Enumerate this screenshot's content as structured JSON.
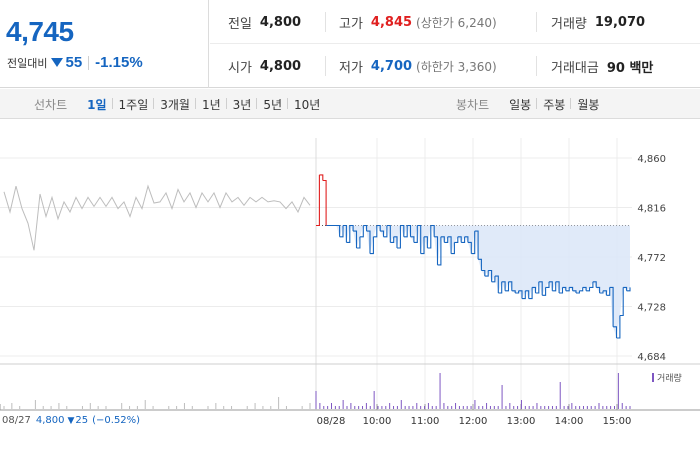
{
  "quote": {
    "price": "4,745",
    "change_label": "전일대비",
    "change_value": "55",
    "change_rate": "-1.15%",
    "direction": "down",
    "colors": {
      "down": "#1565c0",
      "up": "#e02020"
    }
  },
  "stats": {
    "prev_close_label": "전일",
    "prev_close": "4,800",
    "high_label": "고가",
    "high": "4,845",
    "upper_limit": "(상한가 6,240)",
    "volume_label": "거래량",
    "volume": "19,070",
    "open_label": "시가",
    "open": "4,800",
    "low_label": "저가",
    "low": "4,700",
    "lower_limit": "(하한가 3,360)",
    "amount_label": "거래대금",
    "amount": "90 백만"
  },
  "tabs": {
    "line_label": "선차트",
    "line_items": [
      "1일",
      "1주일",
      "3개월",
      "1년",
      "3년",
      "5년",
      "10년"
    ],
    "line_active": "1일",
    "candle_label": "봉차트",
    "candle_items": [
      "일봉",
      "주봉",
      "월봉"
    ]
  },
  "chart_data": {
    "type": "line",
    "title": "",
    "y_ticks": [
      "4,860",
      "4,816",
      "4,772",
      "4,728",
      "4,684"
    ],
    "ylim": [
      4684,
      4860
    ],
    "x_ticks": [
      "08/27",
      "08/28",
      "10:00",
      "11:00",
      "12:00",
      "13:00",
      "14:00",
      "15:00"
    ],
    "previous_close": 4800,
    "legend": "거래량",
    "prev_day_summary": {
      "date": "08/27",
      "price": "4,800",
      "change": "25",
      "rate": "(−0.52%)"
    },
    "series": [
      {
        "session": "08/27",
        "color": "#bdbdbd",
        "values": [
          4830,
          4812,
          4835,
          4815,
          4802,
          4778,
          4828,
          4808,
          4825,
          4806,
          4821,
          4812,
          4825,
          4815,
          4825,
          4817,
          4825,
          4817,
          4825,
          4815,
          4821,
          4808,
          4825,
          4815,
          4835,
          4820,
          4821,
          4829,
          4815,
          4832,
          4821,
          4829,
          4816,
          4829,
          4821,
          4829,
          4816,
          4829,
          4821,
          4825,
          4818,
          4825,
          4821,
          4825,
          4821,
          4822,
          4821,
          4815,
          4821,
          4812,
          4825,
          4818
        ]
      },
      {
        "session": "08/28",
        "color": "#1565c0",
        "upColor": "#e02020",
        "values": [
          4800,
          4845,
          4840,
          4800,
          4800,
          4800,
          4800,
          4790,
          4800,
          4785,
          4800,
          4795,
          4780,
          4790,
          4800,
          4795,
          4775,
          4790,
          4800,
          4795,
          4790,
          4800,
          4785,
          4790,
          4780,
          4800,
          4790,
          4800,
          4790,
          4785,
          4800,
          4775,
          4790,
          4780,
          4800,
          4790,
          4765,
          4790,
          4785,
          4790,
          4775,
          4785,
          4790,
          4785,
          4790,
          4785,
          4775,
          4795,
          4770,
          4760,
          4755,
          4760,
          4750,
          4755,
          4740,
          4750,
          4742,
          4750,
          4742,
          4740,
          4742,
          4735,
          4742,
          4735,
          4745,
          4740,
          4750,
          4738,
          4745,
          4750,
          4742,
          4750,
          4740,
          4745,
          4742,
          4745,
          4742,
          4740,
          4742,
          4745,
          4742,
          4745,
          4750,
          4745,
          4740,
          4742,
          4738,
          4745,
          4710,
          4700,
          4720,
          4745,
          4742,
          4745
        ]
      }
    ],
    "volume": {
      "color_prev": "#bdbdbd",
      "color_today": "#7e57c2",
      "prev_bars": [
        1,
        2,
        1,
        0,
        3,
        1,
        1,
        2,
        1,
        0,
        1,
        2,
        1,
        1,
        0,
        2,
        1,
        1,
        3,
        1,
        0,
        1,
        1,
        2,
        1,
        0,
        1,
        2,
        1,
        1,
        0,
        1,
        2,
        1,
        1,
        4,
        1,
        0,
        1,
        2
      ],
      "today_bars": [
        6,
        2,
        1,
        1,
        2,
        1,
        1,
        3,
        1,
        2,
        1,
        1,
        1,
        2,
        1,
        6,
        1,
        1,
        1,
        2,
        1,
        1,
        3,
        1,
        1,
        1,
        2,
        1,
        1,
        2,
        1,
        1,
        12,
        2,
        1,
        1,
        2,
        1,
        1,
        1,
        1,
        3,
        1,
        1,
        2,
        1,
        1,
        1,
        8,
        1,
        2,
        1,
        1,
        3,
        1,
        1,
        1,
        2,
        1,
        1,
        1,
        1,
        1,
        9,
        1,
        1,
        2,
        1,
        1,
        1,
        1,
        1,
        1,
        2,
        1,
        1,
        1,
        1,
        12,
        2,
        1,
        1
      ]
    }
  }
}
